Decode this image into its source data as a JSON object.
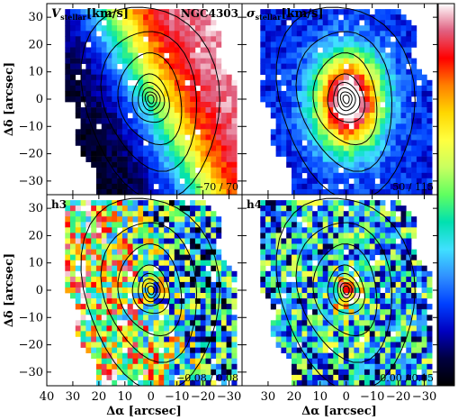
{
  "figure": {
    "galaxy": "NGC4303",
    "xlabel": "Δα [arcsec]",
    "ylabel": "Δδ [arcsec]"
  },
  "colormap": [
    "#ffffff",
    "#e06080",
    "#ff0000",
    "#ff8000",
    "#ffd700",
    "#ffff40",
    "#c8ff60",
    "#60ff60",
    "#00e0b0",
    "#40e0ff",
    "#3090ff",
    "#0040ff",
    "#0000c0",
    "#000040",
    "#000000"
  ],
  "chart_data": [
    {
      "type": "heatmap",
      "panel": "top-left",
      "label_main": "V",
      "label_sub": "stellar",
      "label_unit": "[km/s]",
      "range_text": "−70 / 70",
      "vmin": -70,
      "vmax": 70,
      "quantity": "rotation",
      "xlim": [
        40,
        -35
      ],
      "ylim": [
        -35,
        35
      ],
      "xticks": [
        40,
        30,
        20,
        10,
        0,
        -10,
        -20,
        -30
      ],
      "yticks": [
        30,
        20,
        10,
        0,
        -10,
        -20,
        -30
      ]
    },
    {
      "type": "heatmap",
      "panel": "top-right",
      "label_main": "σ",
      "label_sub": "stellar",
      "label_unit": "[km/s]",
      "range_text": "50 / 115",
      "vmin": 50,
      "vmax": 115,
      "quantity": "dispersion",
      "xlim": [
        40,
        -35
      ],
      "ylim": [
        -35,
        35
      ],
      "xticks": [
        40,
        30,
        20,
        10,
        0,
        -10,
        -20,
        -30
      ],
      "yticks": [
        30,
        20,
        10,
        0,
        -10,
        -20,
        -30
      ]
    },
    {
      "type": "heatmap",
      "panel": "bottom-left",
      "label_main": "h3",
      "label_sub": "",
      "label_unit": "",
      "range_text": "−0.08 / 0.08",
      "vmin": -0.08,
      "vmax": 0.08,
      "quantity": "h3",
      "xlim": [
        40,
        -35
      ],
      "ylim": [
        -35,
        35
      ],
      "xticks": [
        40,
        30,
        20,
        10,
        0,
        -10,
        -20,
        -30
      ],
      "yticks": [
        30,
        20,
        10,
        0,
        -10,
        -20,
        -30
      ]
    },
    {
      "type": "heatmap",
      "panel": "bottom-right",
      "label_main": "h4",
      "label_sub": "",
      "label_unit": "",
      "range_text": "0.00 / 0.15",
      "vmin": 0.0,
      "vmax": 0.15,
      "quantity": "h4",
      "xlim": [
        40,
        -35
      ],
      "ylim": [
        -35,
        35
      ],
      "xticks": [
        40,
        30,
        20,
        10,
        0,
        -10,
        -20,
        -30
      ],
      "yticks": [
        30,
        20,
        10,
        0,
        -10,
        -20,
        -30
      ]
    }
  ]
}
